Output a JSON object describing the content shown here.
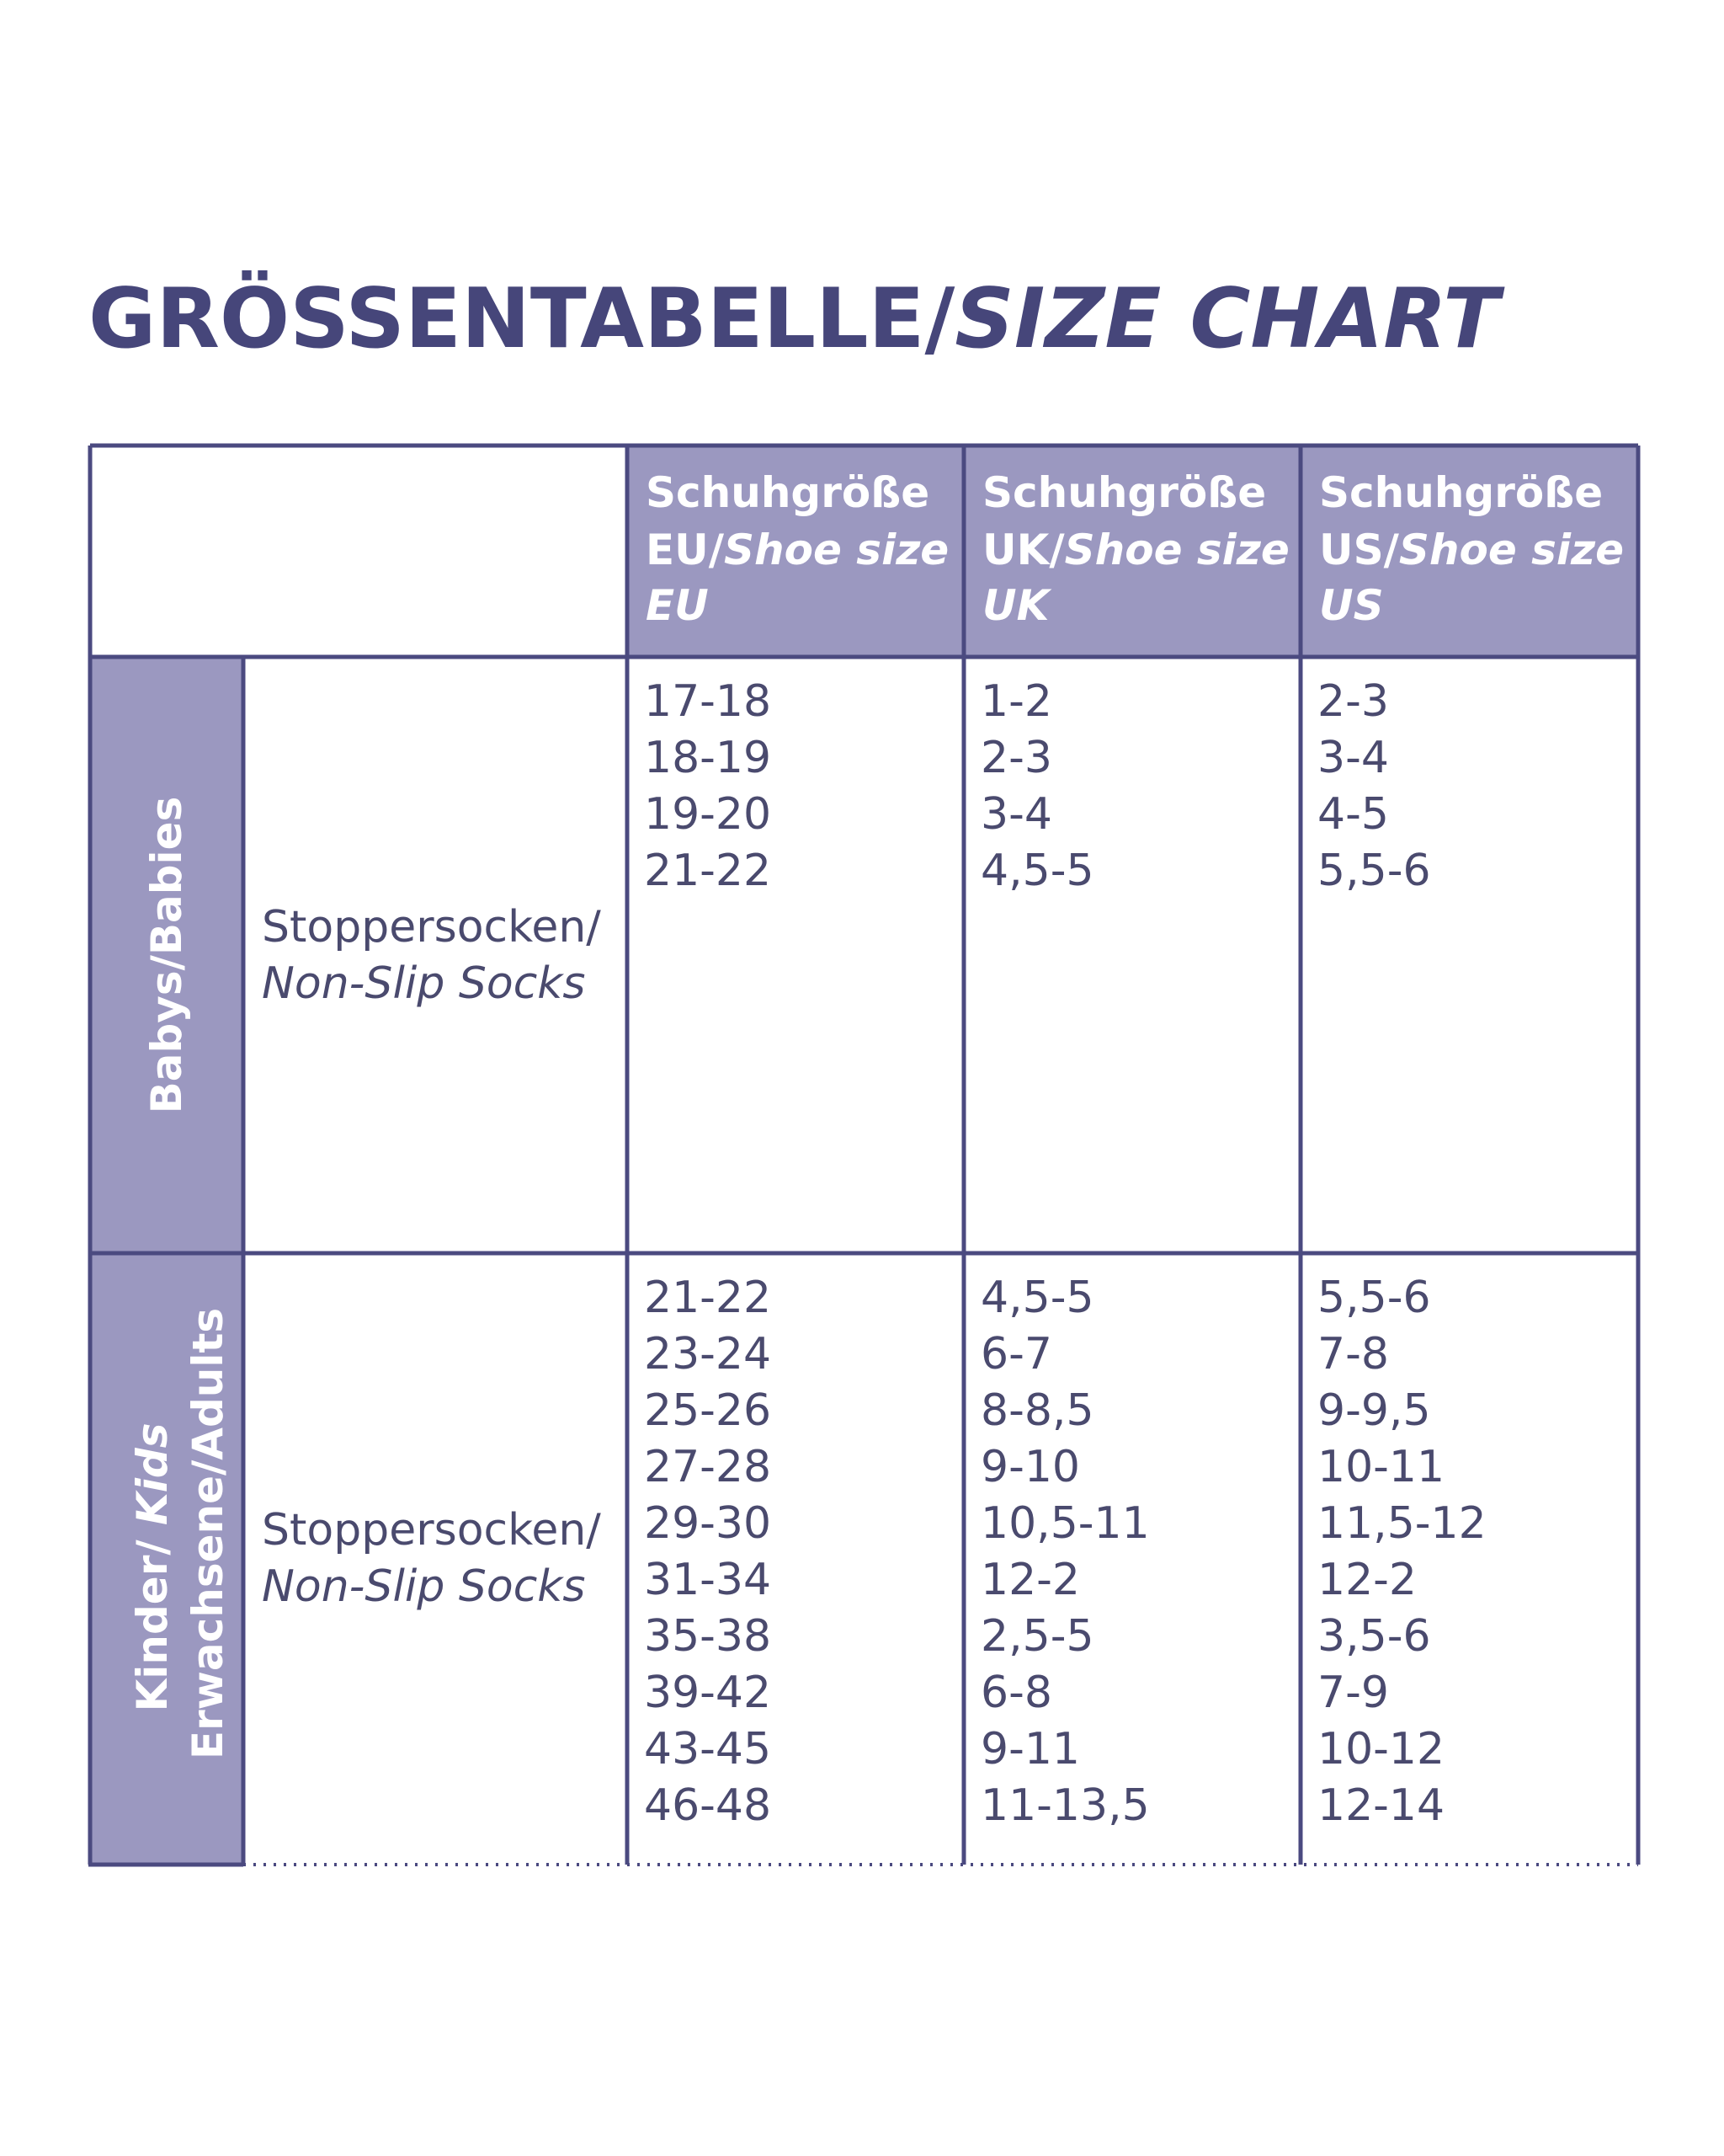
{
  "title": {
    "main": "GRÖSSENTABELLE/",
    "italic": "SIZE CHART"
  },
  "header": [
    {
      "line1": "Schuhgröße",
      "code": "EU/",
      "en": "Shoe size EU"
    },
    {
      "line1": "Schuhgröße",
      "code": "UK/",
      "en": "Shoe size UK"
    },
    {
      "line1": "Schuhgröße",
      "code": "US/",
      "en": "Shoe size US"
    }
  ],
  "groups": [
    {
      "label": [
        "Babys/Babies"
      ],
      "product_de": "Stoppersocken/",
      "product_en": "Non-Slip Socks",
      "eu": [
        "17-18",
        "18-19",
        "19-20",
        "21-22"
      ],
      "uk": [
        "1-2",
        "2-3",
        "3-4",
        "4,5-5"
      ],
      "us": [
        "2-3",
        "3-4",
        "4-5",
        "5,5-6"
      ]
    },
    {
      "label": [
        "Kinder/ ",
        "Kids",
        "Erwachsene/Adults"
      ],
      "product_de": "Stoppersocken/",
      "product_en": "Non-Slip Socks",
      "eu": [
        "21-22",
        "23-24",
        "25-26",
        "27-28",
        "29-30",
        "31-34",
        "35-38",
        "39-42",
        "43-45",
        "46-48"
      ],
      "uk": [
        "4,5-5",
        "6-7",
        "8-8,5",
        "9-10",
        "10,5-11",
        "12-2",
        "2,5-5",
        "6-8",
        "9-11",
        "11-13,5"
      ],
      "us": [
        "5,5-6",
        "7-8",
        "9-9,5",
        "10-11",
        "11,5-12",
        "12-2",
        "3,5-6",
        "7-9",
        "10-12",
        "12-14"
      ]
    }
  ]
}
